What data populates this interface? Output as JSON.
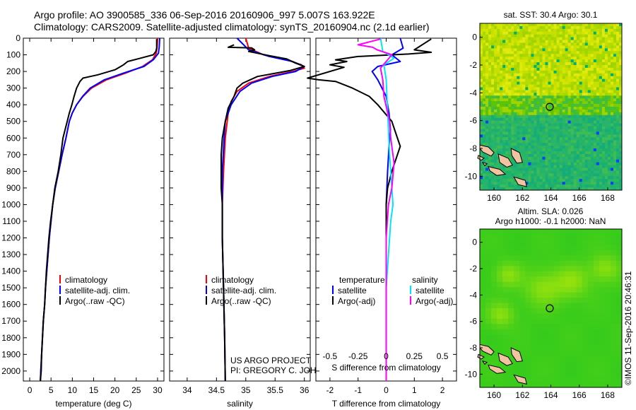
{
  "header": {
    "line1": "Argo profile: AO 3900585_336 06-Sep-2016 20160906_997 5.007S 163.922E",
    "line2": "Climatology: CARS2009. Satellite-adjusted climatology: synTS_20160904.nc (2.1d earlier)"
  },
  "colors": {
    "climatology": "#ff0000",
    "satellite": "#0000ff",
    "argo": "#000000",
    "sat_salinity": "#00e5ff",
    "argo_salinity": "#ff00ff"
  },
  "chart_data": [
    {
      "id": "temperature",
      "type": "line",
      "xlabel": "temperature (deg C)",
      "xlim": [
        -1.5,
        31.5
      ],
      "xticks": [
        0,
        5,
        10,
        15,
        20,
        25,
        30
      ],
      "ylim": [
        0,
        2060
      ],
      "yticks": [
        0,
        100,
        200,
        300,
        400,
        500,
        600,
        700,
        800,
        900,
        1000,
        1100,
        1200,
        1300,
        1400,
        1500,
        1600,
        1700,
        1800,
        1900,
        2000
      ],
      "legend": {
        "position": "lower-middle",
        "entries": [
          "climatology",
          "satellite-adj. clim.",
          "Argo(..raw -QC)"
        ]
      },
      "series": [
        {
          "name": "climatology",
          "color": "#ff0000",
          "points": [
            [
              30.0,
              0
            ],
            [
              29.9,
              50
            ],
            [
              29.7,
              90
            ],
            [
              28.8,
              130
            ],
            [
              26.5,
              170
            ],
            [
              22.5,
              210
            ],
            [
              18.0,
              250
            ],
            [
              14.5,
              300
            ],
            [
              12.5,
              350
            ],
            [
              11.0,
              400
            ],
            [
              10.0,
              450
            ],
            [
              9.3,
              500
            ],
            [
              8.5,
              600
            ],
            [
              7.6,
              700
            ],
            [
              6.8,
              800
            ],
            [
              6.0,
              900
            ],
            [
              5.4,
              1000
            ],
            [
              5.0,
              1100
            ],
            [
              4.6,
              1200
            ],
            [
              4.3,
              1300
            ],
            [
              4.0,
              1400
            ],
            [
              3.7,
              1500
            ],
            [
              3.5,
              1600
            ],
            [
              3.2,
              1700
            ],
            [
              3.0,
              1800
            ],
            [
              2.8,
              1900
            ],
            [
              2.6,
              2000
            ],
            [
              2.5,
              2060
            ]
          ]
        },
        {
          "name": "satellite-adj. clim.",
          "color": "#0000ff",
          "points": [
            [
              30.5,
              0
            ],
            [
              30.4,
              50
            ],
            [
              30.2,
              90
            ],
            [
              29.0,
              130
            ],
            [
              26.8,
              170
            ],
            [
              22.0,
              210
            ],
            [
              17.5,
              250
            ],
            [
              14.2,
              300
            ],
            [
              12.4,
              350
            ],
            [
              11.0,
              400
            ],
            [
              10.0,
              450
            ],
            [
              9.3,
              500
            ],
            [
              8.5,
              600
            ],
            [
              7.6,
              700
            ],
            [
              6.8,
              800
            ],
            [
              6.0,
              900
            ],
            [
              5.4,
              1000
            ],
            [
              5.0,
              1100
            ],
            [
              4.6,
              1200
            ],
            [
              4.3,
              1300
            ],
            [
              4.0,
              1400
            ],
            [
              3.7,
              1500
            ],
            [
              3.5,
              1600
            ],
            [
              3.2,
              1700
            ],
            [
              3.0,
              1800
            ],
            [
              2.8,
              1900
            ],
            [
              2.6,
              2000
            ],
            [
              2.5,
              2060
            ]
          ]
        },
        {
          "name": "Argo(..raw -QC)",
          "color": "#000000",
          "points": [
            [
              29.8,
              5
            ],
            [
              29.8,
              60
            ],
            [
              29.6,
              80
            ],
            [
              29.0,
              100
            ],
            [
              26.0,
              120
            ],
            [
              23.0,
              140
            ],
            [
              22.0,
              160
            ],
            [
              20.0,
              190
            ],
            [
              16.0,
              220
            ],
            [
              12.5,
              240
            ],
            [
              11.8,
              260
            ],
            [
              11.0,
              300
            ],
            [
              10.4,
              350
            ],
            [
              9.9,
              400
            ],
            [
              9.3,
              450
            ],
            [
              8.8,
              500
            ],
            [
              7.8,
              600
            ],
            [
              7.3,
              700
            ],
            [
              6.7,
              800
            ],
            [
              5.9,
              900
            ],
            [
              5.4,
              1000
            ],
            [
              4.9,
              1100
            ],
            [
              4.5,
              1200
            ],
            [
              4.2,
              1300
            ],
            [
              3.9,
              1400
            ],
            [
              3.7,
              1500
            ],
            [
              3.5,
              1600
            ],
            [
              3.2,
              1700
            ],
            [
              3.0,
              1800
            ],
            [
              2.8,
              1900
            ],
            [
              2.7,
              2000
            ],
            [
              2.5,
              2060
            ]
          ]
        }
      ]
    },
    {
      "id": "salinity",
      "type": "line",
      "xlabel": "salinity",
      "xlim": [
        33.7,
        36.1
      ],
      "xticks": [
        34,
        34.5,
        35,
        35.5,
        36
      ],
      "xticklabels": [
        "34",
        "34.5",
        "35",
        "35.5",
        "36"
      ],
      "ylim": [
        0,
        2060
      ],
      "legend": {
        "position": "lower-middle",
        "entries": [
          "climatology",
          "satellite-adj. clim.",
          "Argo(..raw -QC)"
        ]
      },
      "annotation": [
        "US ARGO PROJECT",
        "PI: GREGORY C. JOHNSON"
      ],
      "series": [
        {
          "name": "climatology",
          "color": "#ff0000",
          "points": [
            [
              35.0,
              0
            ],
            [
              35.05,
              60
            ],
            [
              35.3,
              100
            ],
            [
              35.7,
              130
            ],
            [
              35.95,
              160
            ],
            [
              36.0,
              180
            ],
            [
              35.8,
              200
            ],
            [
              35.4,
              230
            ],
            [
              35.05,
              270
            ],
            [
              34.85,
              320
            ],
            [
              34.75,
              380
            ],
            [
              34.7,
              450
            ],
            [
              34.65,
              600
            ],
            [
              34.62,
              800
            ],
            [
              34.6,
              1000
            ],
            [
              34.6,
              1200
            ],
            [
              34.62,
              1500
            ],
            [
              34.64,
              1800
            ],
            [
              34.65,
              2060
            ]
          ]
        },
        {
          "name": "satellite-adj. clim.",
          "color": "#0000ff",
          "points": [
            [
              34.85,
              0
            ],
            [
              35.05,
              70
            ],
            [
              35.4,
              110
            ],
            [
              35.8,
              140
            ],
            [
              36.0,
              170
            ],
            [
              35.85,
              200
            ],
            [
              35.45,
              230
            ],
            [
              35.1,
              270
            ],
            [
              34.9,
              320
            ],
            [
              34.75,
              400
            ],
            [
              34.65,
              500
            ],
            [
              34.63,
              600
            ],
            [
              34.6,
              800
            ],
            [
              34.6,
              1000
            ],
            [
              34.6,
              1200
            ],
            [
              34.62,
              1500
            ],
            [
              34.64,
              1800
            ],
            [
              34.65,
              2060
            ]
          ]
        },
        {
          "name": "Argo(..raw -QC)",
          "color": "#000000",
          "points": [
            [
              34.8,
              40
            ],
            [
              34.7,
              55
            ],
            [
              35.1,
              58
            ],
            [
              35.15,
              70
            ],
            [
              35.05,
              80
            ],
            [
              35.4,
              105
            ],
            [
              35.7,
              125
            ],
            [
              35.85,
              150
            ],
            [
              36.0,
              170
            ],
            [
              35.75,
              195
            ],
            [
              35.2,
              230
            ],
            [
              34.95,
              270
            ],
            [
              34.85,
              300
            ],
            [
              34.8,
              350
            ],
            [
              34.7,
              420
            ],
            [
              34.65,
              500
            ],
            [
              34.6,
              600
            ],
            [
              34.58,
              700
            ],
            [
              34.58,
              800
            ],
            [
              34.58,
              900
            ],
            [
              34.6,
              1000
            ],
            [
              34.6,
              1200
            ],
            [
              34.62,
              1500
            ],
            [
              34.64,
              1800
            ],
            [
              34.65,
              2060
            ]
          ]
        }
      ]
    },
    {
      "id": "difference",
      "type": "line",
      "xlabel": "T difference from climatology",
      "xlim": [
        -2.5,
        2.5
      ],
      "xticks": [
        -2,
        -1,
        0,
        1,
        2
      ],
      "ylim": [
        0,
        2060
      ],
      "s_axis": {
        "label": "S difference from climatology",
        "ticks": [
          -0.5,
          -0.25,
          0,
          0.25,
          0.5
        ],
        "ticklabels": [
          "-0.5",
          "-0.25",
          "0",
          "0.25",
          "0.5"
        ],
        "scale_factor": 4
      },
      "legend": {
        "position": "lower-middle",
        "left_title": "temperature",
        "right_title": "salinity",
        "entries": [
          "satellite",
          "Argo(-adj)",
          "satellite",
          "Argo(-adj)"
        ]
      },
      "series": [
        {
          "name": "satellite",
          "group": "temperature",
          "color": "#0000ff",
          "points": [
            [
              0.5,
              0
            ],
            [
              0.6,
              60
            ],
            [
              0.2,
              100
            ],
            [
              0.5,
              140
            ],
            [
              -0.3,
              170
            ],
            [
              -0.5,
              200
            ],
            [
              -0.3,
              250
            ],
            [
              0.0,
              350
            ],
            [
              0.1,
              450
            ],
            [
              0.15,
              550
            ],
            [
              0.1,
              650
            ],
            [
              0.05,
              800
            ],
            [
              0.0,
              1000
            ],
            [
              0.0,
              1500
            ],
            [
              0.0,
              2060
            ]
          ]
        },
        {
          "name": "Argo(-adj)",
          "group": "temperature",
          "color": "#000000",
          "points": [
            [
              1.6,
              5
            ],
            [
              1.0,
              70
            ],
            [
              1.6,
              85
            ],
            [
              0.8,
              95
            ],
            [
              -1.0,
              110
            ],
            [
              -1.8,
              130
            ],
            [
              -1.4,
              140
            ],
            [
              -2.0,
              160
            ],
            [
              -1.5,
              175
            ],
            [
              -2.8,
              240
            ],
            [
              -2.4,
              250
            ],
            [
              -1.8,
              260
            ],
            [
              -1.2,
              300
            ],
            [
              -0.6,
              350
            ],
            [
              -0.3,
              400
            ],
            [
              0.2,
              500
            ],
            [
              0.3,
              550
            ],
            [
              0.5,
              650
            ],
            [
              0.4,
              700
            ],
            [
              0.2,
              800
            ],
            [
              0.05,
              900
            ],
            [
              0.0,
              1000
            ],
            [
              0.0,
              1500
            ],
            [
              0.0,
              2060
            ]
          ]
        },
        {
          "name": "satellite",
          "group": "salinity",
          "color": "#00e5ff",
          "points": [
            [
              -0.05,
              0
            ],
            [
              -0.03,
              80
            ],
            [
              0.07,
              120
            ],
            [
              -0.02,
              160
            ],
            [
              0.0,
              250
            ],
            [
              0.01,
              400
            ],
            [
              0.03,
              700
            ],
            [
              0.06,
              1000
            ],
            [
              0.04,
              1100
            ],
            [
              0.02,
              1300
            ],
            [
              0.0,
              1500
            ],
            [
              0.0,
              1800
            ],
            [
              0.0,
              2060
            ]
          ]
        },
        {
          "name": "Argo(-adj)",
          "group": "salinity",
          "color": "#ff00ff",
          "points": [
            [
              -0.05,
              5
            ],
            [
              -0.25,
              40
            ],
            [
              -0.12,
              55
            ],
            [
              -0.08,
              70
            ],
            [
              0.05,
              100
            ],
            [
              0.0,
              140
            ],
            [
              -0.05,
              180
            ],
            [
              -0.03,
              250
            ],
            [
              -0.02,
              350
            ],
            [
              0.03,
              500
            ],
            [
              0.04,
              600
            ],
            [
              0.07,
              750
            ],
            [
              0.05,
              900
            ],
            [
              0.02,
              1000
            ],
            [
              0.0,
              1200
            ],
            [
              0.0,
              2060
            ]
          ]
        }
      ]
    },
    {
      "id": "sst_map",
      "type": "heatmap",
      "title": "sat. SST: 30.4  Argo: 30.1",
      "xlim": [
        159,
        169
      ],
      "xticks": [
        160,
        162,
        164,
        166,
        168
      ],
      "ylim": [
        -11,
        1
      ],
      "yticks": [
        0,
        -2,
        -4,
        -6,
        -8,
        -10
      ],
      "marker": {
        "lon": 163.922,
        "lat": -5.007
      }
    },
    {
      "id": "sla_map",
      "type": "heatmap",
      "title": "Altim. SLA: 0.026",
      "subtitle": "Argo h1000: -0.1  h2000: NaN",
      "xlim": [
        159,
        169
      ],
      "xticks": [
        160,
        162,
        164,
        166,
        168
      ],
      "ylim": [
        -11,
        1
      ],
      "yticks": [
        0,
        -2,
        -4,
        -6,
        -8,
        -10
      ],
      "marker": {
        "lon": 163.922,
        "lat": -5.007
      }
    }
  ],
  "footer": {
    "stamp": "©IMOS 11-Sep-2016 20:46:31"
  }
}
